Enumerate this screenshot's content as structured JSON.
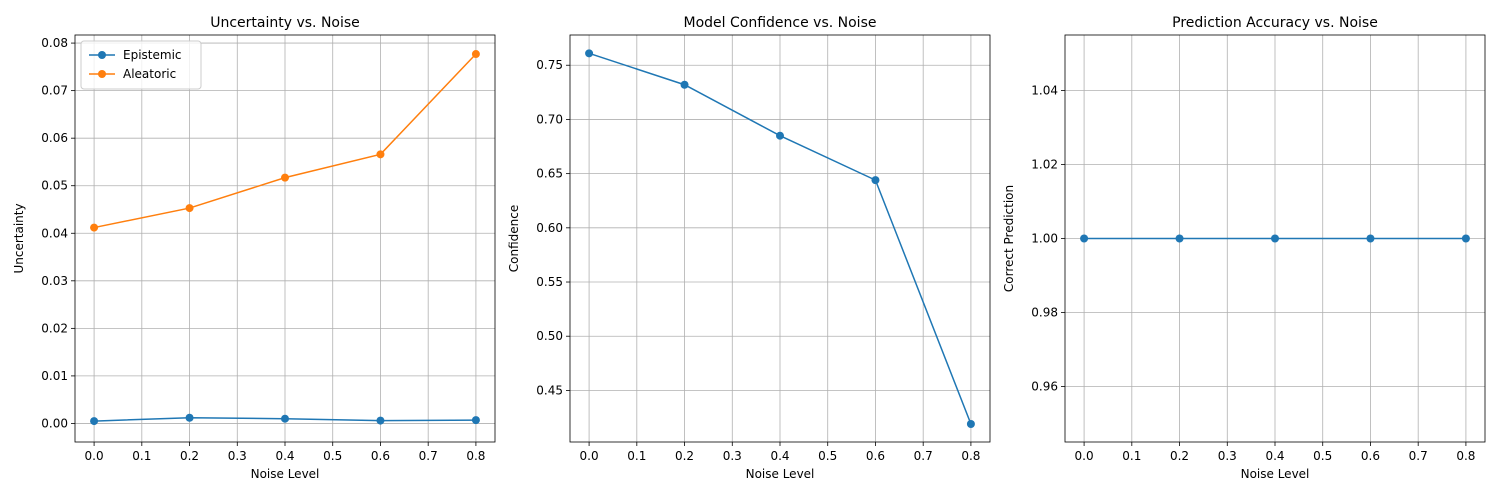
{
  "chart_data": [
    {
      "type": "line",
      "title": "Uncertainty vs. Noise",
      "xlabel": "Noise Level",
      "ylabel": "Uncertainty",
      "x": [
        0.0,
        0.2,
        0.4,
        0.6,
        0.8
      ],
      "xlim": [
        -0.04,
        0.84
      ],
      "ylim": [
        -0.0039,
        0.0817
      ],
      "xticks": [
        0.0,
        0.1,
        0.2,
        0.3,
        0.4,
        0.5,
        0.6,
        0.7,
        0.8
      ],
      "xtick_labels": [
        "0.0",
        "0.1",
        "0.2",
        "0.3",
        "0.4",
        "0.5",
        "0.6",
        "0.7",
        "0.8"
      ],
      "yticks": [
        0.0,
        0.01,
        0.02,
        0.03,
        0.04,
        0.05,
        0.06,
        0.07,
        0.08
      ],
      "ytick_labels": [
        "0.00",
        "0.01",
        "0.02",
        "0.03",
        "0.04",
        "0.05",
        "0.06",
        "0.07",
        "0.08"
      ],
      "grid": true,
      "legend": "upper-left",
      "series": [
        {
          "name": "Epistemic",
          "color": "#1f77b4",
          "values": [
            0.0005,
            0.0012,
            0.001,
            0.0006,
            0.0007
          ]
        },
        {
          "name": "Aleatoric",
          "color": "#ff7f0e",
          "values": [
            0.0412,
            0.0453,
            0.0517,
            0.0566,
            0.0777
          ]
        }
      ]
    },
    {
      "type": "line",
      "title": "Model Confidence vs. Noise",
      "xlabel": "Noise Level",
      "ylabel": "Confidence",
      "x": [
        0.0,
        0.2,
        0.4,
        0.6,
        0.8
      ],
      "xlim": [
        -0.04,
        0.84
      ],
      "ylim": [
        0.4024,
        0.7779
      ],
      "xticks": [
        0.0,
        0.1,
        0.2,
        0.3,
        0.4,
        0.5,
        0.6,
        0.7,
        0.8
      ],
      "xtick_labels": [
        "0.0",
        "0.1",
        "0.2",
        "0.3",
        "0.4",
        "0.5",
        "0.6",
        "0.7",
        "0.8"
      ],
      "yticks": [
        0.45,
        0.5,
        0.55,
        0.6,
        0.65,
        0.7,
        0.75
      ],
      "ytick_labels": [
        "0.45",
        "0.50",
        "0.55",
        "0.60",
        "0.65",
        "0.70",
        "0.75"
      ],
      "grid": true,
      "series": [
        {
          "color": "#1f77b4",
          "values": [
            0.761,
            0.732,
            0.685,
            0.644,
            0.419
          ]
        }
      ]
    },
    {
      "type": "line",
      "title": "Prediction Accuracy vs. Noise",
      "xlabel": "Noise Level",
      "ylabel": "Correct Prediction",
      "x": [
        0.0,
        0.2,
        0.4,
        0.6,
        0.8
      ],
      "xlim": [
        -0.04,
        0.84
      ],
      "ylim": [
        0.945,
        1.055
      ],
      "xticks": [
        0.0,
        0.1,
        0.2,
        0.3,
        0.4,
        0.5,
        0.6,
        0.7,
        0.8
      ],
      "xtick_labels": [
        "0.0",
        "0.1",
        "0.2",
        "0.3",
        "0.4",
        "0.5",
        "0.6",
        "0.7",
        "0.8"
      ],
      "yticks": [
        0.96,
        0.98,
        1.0,
        1.02,
        1.04
      ],
      "ytick_labels": [
        "0.96",
        "0.98",
        "1.00",
        "1.02",
        "1.04"
      ],
      "grid": true,
      "series": [
        {
          "color": "#1f77b4",
          "values": [
            1.0,
            1.0,
            1.0,
            1.0,
            1.0
          ]
        }
      ]
    }
  ]
}
